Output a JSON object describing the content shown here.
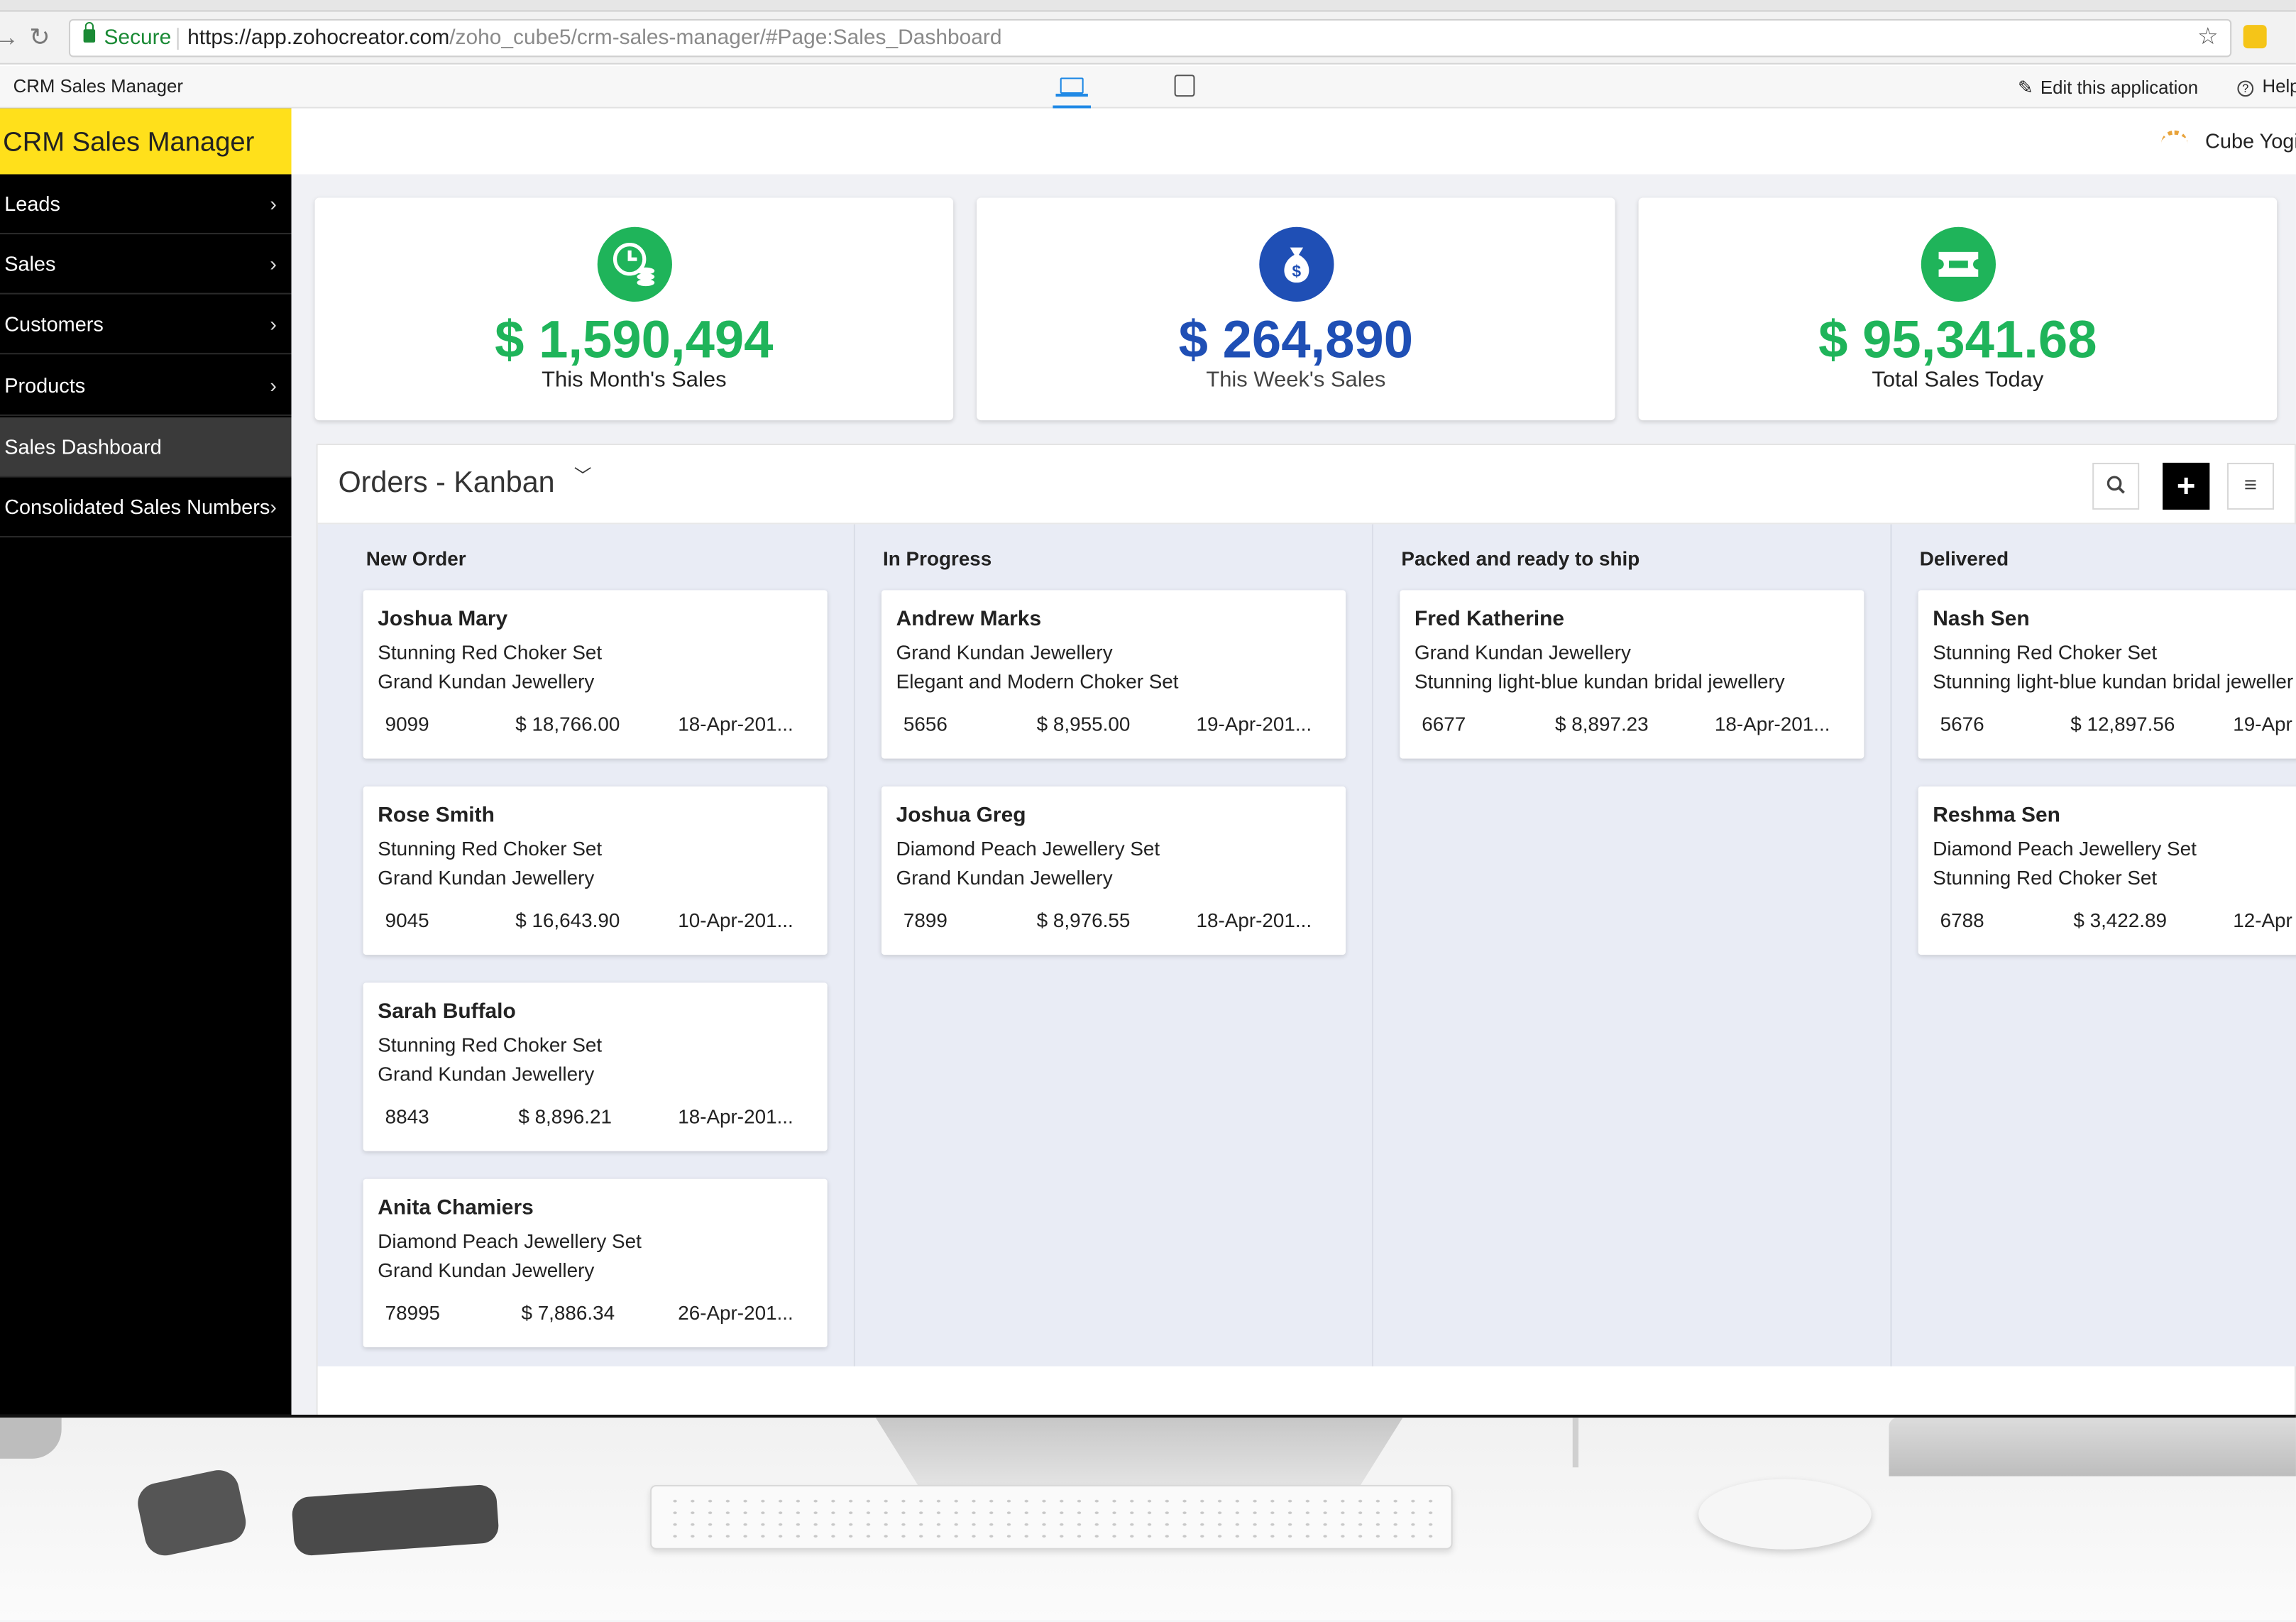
{
  "browser": {
    "secure_label": "Secure",
    "url_host": "https://app.zohocreator.com",
    "url_path": "/zoho_cube5/crm-sales-manager/#Page:Sales_Dashboard"
  },
  "appbar": {
    "app_title": "CRM Sales Manager",
    "edit_label": "Edit this application",
    "help_label": "Help",
    "active_device": "desktop"
  },
  "sidebar": {
    "brand": "CRM Sales Manager",
    "brand_color": "#ffe01b",
    "items": [
      {
        "label": "Leads",
        "chevron": "›"
      },
      {
        "label": "Sales",
        "chevron": "›"
      },
      {
        "label": "Customers",
        "chevron": "›"
      },
      {
        "label": "Products",
        "chevron": "›"
      },
      {
        "label": "Sales Dashboard",
        "active": true
      },
      {
        "label": "Consolidated Sales Numbers",
        "chevron": "›"
      }
    ]
  },
  "header": {
    "user_name": "Cube Yogi"
  },
  "stats": [
    {
      "value": "$ 1,590,494",
      "label": "This Month's Sales",
      "color": "#1fb45a",
      "icon": "clock-coins-icon"
    },
    {
      "value": "$ 264,890",
      "label": "This Week's Sales",
      "color": "#1f4fb5",
      "icon": "money-bag-icon"
    },
    {
      "value": "$ 95,341.68",
      "label": "Total Sales Today",
      "color": "#1fb45a",
      "icon": "ticket-icon"
    }
  ],
  "kanban": {
    "title": "Orders - Kanban",
    "columns": [
      {
        "title": "New Order",
        "cards": [
          {
            "name": "Joshua Mary",
            "line1": "Stunning Red Choker Set",
            "line2": "Grand Kundan Jewellery",
            "id": "9099",
            "amount": "$ 18,766.00",
            "date": "18-Apr-201..."
          },
          {
            "name": "Rose Smith",
            "line1": "Stunning Red Choker Set",
            "line2": "Grand Kundan Jewellery",
            "id": "9045",
            "amount": "$ 16,643.90",
            "date": "10-Apr-201..."
          },
          {
            "name": "Sarah Buffalo",
            "line1": "Stunning Red Choker Set",
            "line2": "Grand Kundan Jewellery",
            "id": "8843",
            "amount": "$ 8,896.21",
            "date": "18-Apr-201..."
          },
          {
            "name": "Anita Chamiers",
            "line1": "Diamond Peach Jewellery Set",
            "line2": "Grand Kundan Jewellery",
            "id": "78995",
            "amount": "$ 7,886.34",
            "date": "26-Apr-201..."
          }
        ]
      },
      {
        "title": "In Progress",
        "cards": [
          {
            "name": "Andrew Marks",
            "line1": "Grand Kundan Jewellery",
            "line2": "Elegant and Modern Choker Set",
            "id": "5656",
            "amount": "$ 8,955.00",
            "date": "19-Apr-201..."
          },
          {
            "name": "Joshua Greg",
            "line1": "Diamond Peach Jewellery Set",
            "line2": "Grand Kundan Jewellery",
            "id": "7899",
            "amount": "$ 8,976.55",
            "date": "18-Apr-201..."
          }
        ]
      },
      {
        "title": "Packed and ready to ship",
        "cards": [
          {
            "name": "Fred Katherine",
            "line1": "Grand Kundan Jewellery",
            "line2": "Stunning light-blue kundan bridal jewellery",
            "id": "6677",
            "amount": "$ 8,897.23",
            "date": "18-Apr-201..."
          }
        ]
      },
      {
        "title": "Delivered",
        "cards": [
          {
            "name": "Nash Sen",
            "line1": "Stunning Red Choker Set",
            "line2": "Stunning light-blue kundan bridal jeweller",
            "id": "5676",
            "amount": "$ 12,897.56",
            "date": "19-Apr"
          },
          {
            "name": "Reshma Sen",
            "line1": "Diamond Peach Jewellery Set",
            "line2": "Stunning Red Choker Set",
            "id": "6788",
            "amount": "$ 3,422.89",
            "date": "12-Apr"
          }
        ]
      }
    ]
  }
}
